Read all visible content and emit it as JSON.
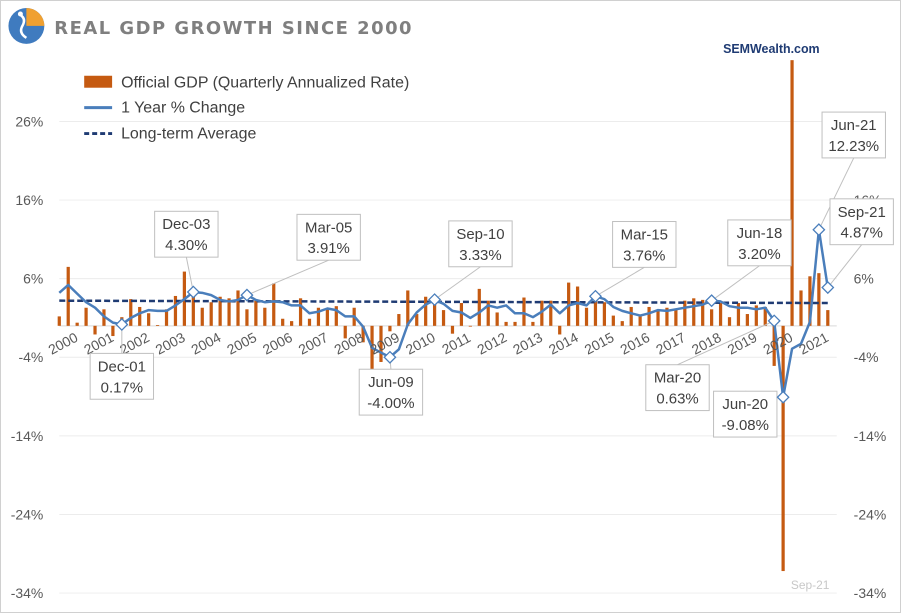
{
  "header": {
    "title": "REAL GDP GROWTH SINCE 2000",
    "brand": "SEMWealth.com",
    "logo_icon": "sem-logo-icon"
  },
  "colors": {
    "bar": "#c55a11",
    "line": "#4a7ebb",
    "avg": "#1f3b73",
    "title": "#7f7f7f"
  },
  "footnote": "Sep-21",
  "chart_data": {
    "type": "bar",
    "title": "REAL GDP GROWTH SINCE 2000",
    "ylim": [
      -34,
      36
    ],
    "yticks": [
      -34,
      -24,
      -14,
      -4,
      6,
      16,
      26
    ],
    "ytick_labels": [
      "-34%",
      "-24%",
      "-14%",
      "-4%",
      "6%",
      "16%",
      "26%"
    ],
    "xlim": [
      2000,
      2021.75
    ],
    "xticks": [
      2000,
      2001,
      2002,
      2003,
      2004,
      2005,
      2006,
      2007,
      2008,
      2009,
      2010,
      2011,
      2012,
      2013,
      2014,
      2015,
      2016,
      2017,
      2018,
      2019,
      2020,
      2021
    ],
    "xtick_labels": [
      "2000",
      "2001",
      "2002",
      "2003",
      "2004",
      "2005",
      "2006",
      "2007",
      "2008",
      "2009",
      "2010",
      "2011",
      "2012",
      "2013",
      "2014",
      "2015",
      "2016",
      "2017",
      "2018",
      "2019",
      "2020",
      "2021"
    ],
    "legend": [
      {
        "name": "Official GDP (Quarterly Annualized Rate)",
        "kind": "bar"
      },
      {
        "name": "1 Year % Change",
        "kind": "line"
      },
      {
        "name": "Long-term Average",
        "kind": "dashed"
      }
    ],
    "series": [
      {
        "name": "Official GDP (Quarterly Annualized Rate)",
        "type": "bar",
        "x": [
          2000.0,
          2000.25,
          2000.5,
          2000.75,
          2001.0,
          2001.25,
          2001.5,
          2001.75,
          2002.0,
          2002.25,
          2002.5,
          2002.75,
          2003.0,
          2003.25,
          2003.5,
          2003.75,
          2004.0,
          2004.25,
          2004.5,
          2004.75,
          2005.0,
          2005.25,
          2005.5,
          2005.75,
          2006.0,
          2006.25,
          2006.5,
          2006.75,
          2007.0,
          2007.25,
          2007.5,
          2007.75,
          2008.0,
          2008.25,
          2008.5,
          2008.75,
          2009.0,
          2009.25,
          2009.5,
          2009.75,
          2010.0,
          2010.25,
          2010.5,
          2010.75,
          2011.0,
          2011.25,
          2011.5,
          2011.75,
          2012.0,
          2012.25,
          2012.5,
          2012.75,
          2013.0,
          2013.25,
          2013.5,
          2013.75,
          2014.0,
          2014.25,
          2014.5,
          2014.75,
          2015.0,
          2015.25,
          2015.5,
          2015.75,
          2016.0,
          2016.25,
          2016.5,
          2016.75,
          2017.0,
          2017.25,
          2017.5,
          2017.75,
          2018.0,
          2018.25,
          2018.5,
          2018.75,
          2019.0,
          2019.25,
          2019.5,
          2019.75,
          2020.0,
          2020.25,
          2020.5,
          2020.75,
          2021.0,
          2021.25,
          2021.5
        ],
        "values": [
          1.2,
          7.5,
          0.4,
          2.3,
          -1.1,
          2.1,
          -1.3,
          1.1,
          3.4,
          2.4,
          1.6,
          0.1,
          2.1,
          3.8,
          6.9,
          4.8,
          2.3,
          3.0,
          3.7,
          3.5,
          4.5,
          2.1,
          3.2,
          2.3,
          5.4,
          0.9,
          0.6,
          3.5,
          0.9,
          2.3,
          2.2,
          2.5,
          -1.6,
          2.3,
          -2.1,
          -8.5,
          -4.6,
          -0.7,
          1.5,
          4.5,
          1.5,
          3.7,
          3.0,
          2.0,
          -1.0,
          2.9,
          -0.1,
          4.7,
          3.2,
          1.7,
          0.5,
          0.5,
          3.6,
          0.5,
          3.2,
          3.2,
          -1.1,
          5.5,
          5.0,
          2.3,
          3.2,
          3.0,
          1.3,
          0.6,
          2.4,
          1.2,
          2.4,
          2.0,
          2.3,
          2.2,
          3.2,
          3.5,
          3.3,
          2.1,
          2.9,
          1.1,
          2.9,
          1.5,
          2.6,
          2.4,
          -5.1,
          -31.2,
          33.8,
          4.5,
          6.3,
          6.7,
          2.0
        ]
      },
      {
        "name": "1 Year % Change",
        "type": "line",
        "x": [
          2000.0,
          2000.25,
          2000.5,
          2000.75,
          2001.0,
          2001.25,
          2001.5,
          2001.75,
          2002.0,
          2002.25,
          2002.5,
          2002.75,
          2003.0,
          2003.25,
          2003.5,
          2003.75,
          2004.0,
          2004.25,
          2004.5,
          2004.75,
          2005.0,
          2005.25,
          2005.5,
          2005.75,
          2006.0,
          2006.25,
          2006.5,
          2006.75,
          2007.0,
          2007.25,
          2007.5,
          2007.75,
          2008.0,
          2008.25,
          2008.5,
          2008.75,
          2009.0,
          2009.25,
          2009.5,
          2009.75,
          2010.0,
          2010.25,
          2010.5,
          2010.75,
          2011.0,
          2011.25,
          2011.5,
          2011.75,
          2012.0,
          2012.25,
          2012.5,
          2012.75,
          2013.0,
          2013.25,
          2013.5,
          2013.75,
          2014.0,
          2014.25,
          2014.5,
          2014.75,
          2015.0,
          2015.25,
          2015.5,
          2015.75,
          2016.0,
          2016.25,
          2016.5,
          2016.75,
          2017.0,
          2017.25,
          2017.5,
          2017.75,
          2018.0,
          2018.25,
          2018.5,
          2018.75,
          2019.0,
          2019.25,
          2019.5,
          2019.75,
          2020.0,
          2020.25,
          2020.5,
          2020.75,
          2021.0,
          2021.25,
          2021.5
        ],
        "values": [
          4.2,
          5.2,
          4.1,
          3.0,
          2.3,
          1.2,
          0.4,
          0.17,
          1.0,
          1.6,
          2.0,
          1.9,
          1.9,
          2.6,
          3.4,
          4.3,
          4.2,
          3.9,
          3.3,
          3.1,
          3.3,
          3.91,
          3.3,
          3.0,
          3.1,
          3.0,
          2.6,
          2.6,
          1.6,
          1.8,
          2.2,
          2.0,
          1.2,
          1.2,
          -0.1,
          -2.8,
          -3.4,
          -4.0,
          -3.0,
          0.2,
          1.7,
          2.7,
          3.3,
          2.8,
          1.9,
          1.7,
          1.0,
          1.7,
          2.6,
          2.3,
          2.6,
          1.6,
          1.6,
          1.1,
          1.8,
          2.7,
          1.6,
          2.6,
          2.9,
          2.6,
          3.76,
          3.4,
          2.4,
          1.9,
          1.6,
          1.3,
          1.6,
          2.0,
          1.9,
          2.1,
          2.3,
          2.5,
          2.7,
          3.2,
          3.1,
          2.5,
          2.3,
          2.3,
          2.1,
          2.3,
          0.63,
          -9.08,
          -2.9,
          -2.3,
          0.5,
          12.23,
          4.87
        ]
      },
      {
        "name": "Long-term Average",
        "type": "dashed",
        "x": [
          2000.0,
          2021.5
        ],
        "values": [
          3.2,
          2.9
        ]
      }
    ],
    "annotations": [
      {
        "label": "Dec-01",
        "value": "0.17%",
        "x": 2001.75,
        "y": 0.17
      },
      {
        "label": "Dec-03",
        "value": "4.30%",
        "x": 2003.75,
        "y": 4.3
      },
      {
        "label": "Mar-05",
        "value": "3.91%",
        "x": 2005.25,
        "y": 3.91
      },
      {
        "label": "Jun-09",
        "value": "-4.00%",
        "x": 2009.25,
        "y": -4.0
      },
      {
        "label": "Sep-10",
        "value": "3.33%",
        "x": 2010.5,
        "y": 3.33
      },
      {
        "label": "Mar-15",
        "value": "3.76%",
        "x": 2015.0,
        "y": 3.76
      },
      {
        "label": "Jun-18",
        "value": "3.20%",
        "x": 2018.25,
        "y": 3.2
      },
      {
        "label": "Mar-20",
        "value": "0.63%",
        "x": 2020.0,
        "y": 0.63
      },
      {
        "label": "Jun-20",
        "value": "-9.08%",
        "x": 2020.25,
        "y": -9.08
      },
      {
        "label": "Jun-21",
        "value": "12.23%",
        "x": 2021.25,
        "y": 12.23
      },
      {
        "label": "Sep-21",
        "value": "4.87%",
        "x": 2021.5,
        "y": 4.87
      }
    ]
  }
}
